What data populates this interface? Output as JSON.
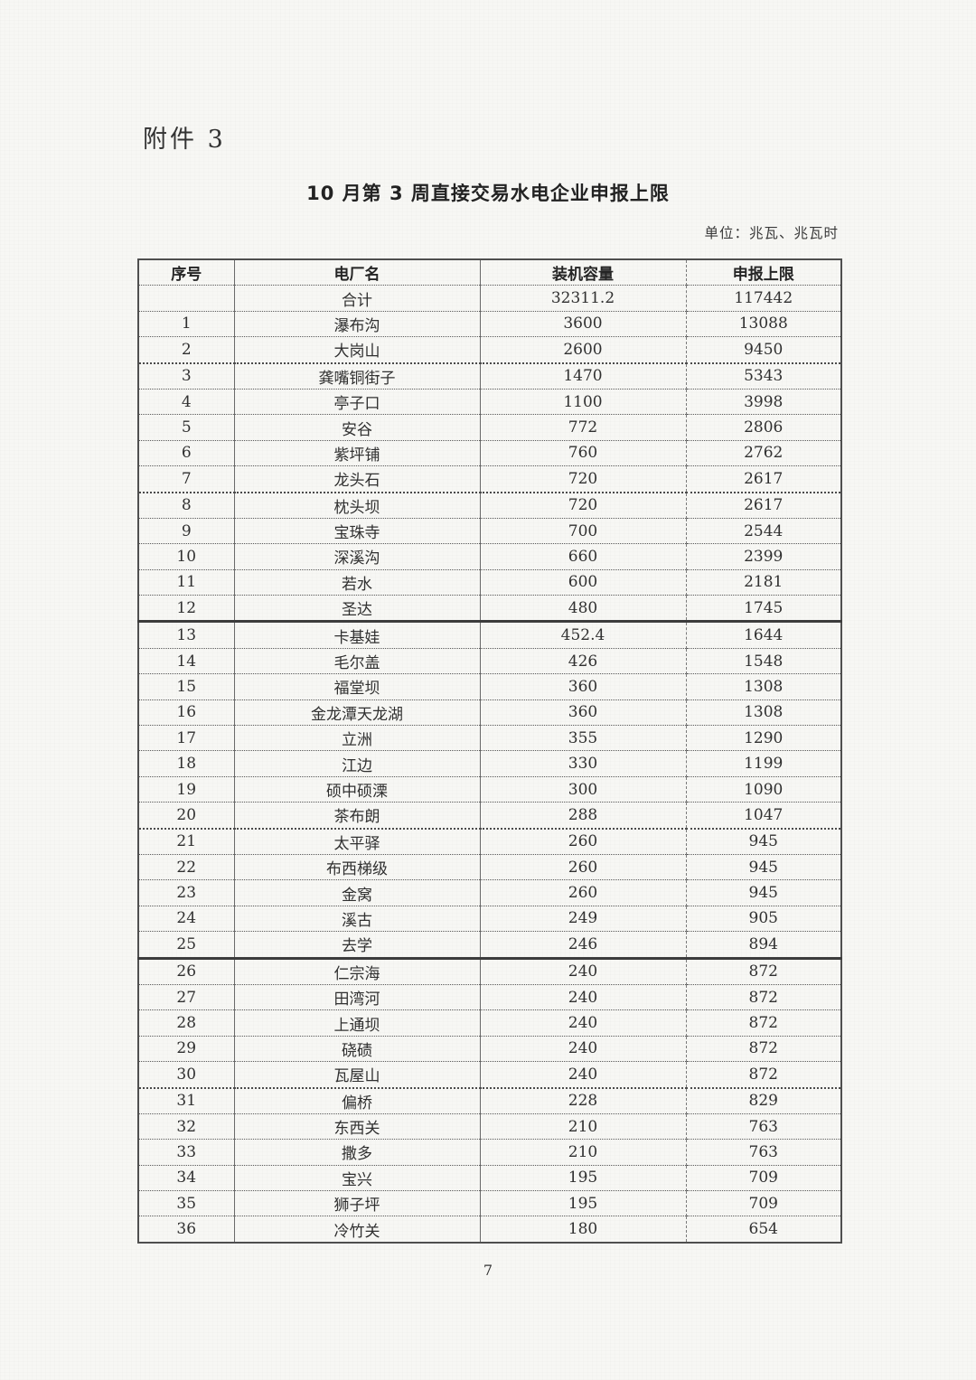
{
  "page": {
    "attachment_label": "附件 3",
    "title": "10 月第 3 周直接交易水电企业申报上限",
    "unit_note": "单位：兆瓦、兆瓦时",
    "page_number": "7"
  },
  "colors": {
    "paper": "#f7f7f4",
    "ink": "#2f2f2f",
    "border": "#4f4f4f"
  },
  "table": {
    "headers": [
      "序号",
      "电厂名",
      "装机容量",
      "申报上限"
    ],
    "total_row": {
      "no": "",
      "name": "合计",
      "capacity": "32311.2",
      "limit": "117442"
    },
    "rows": [
      {
        "no": "1",
        "name": "瀑布沟",
        "capacity": "3600",
        "limit": "13088"
      },
      {
        "no": "2",
        "name": "大岗山",
        "capacity": "2600",
        "limit": "9450"
      },
      {
        "no": "3",
        "name": "龚嘴铜街子",
        "capacity": "1470",
        "limit": "5343"
      },
      {
        "no": "4",
        "name": "亭子口",
        "capacity": "1100",
        "limit": "3998"
      },
      {
        "no": "5",
        "name": "安谷",
        "capacity": "772",
        "limit": "2806"
      },
      {
        "no": "6",
        "name": "紫坪铺",
        "capacity": "760",
        "limit": "2762"
      },
      {
        "no": "7",
        "name": "龙头石",
        "capacity": "720",
        "limit": "2617"
      },
      {
        "no": "8",
        "name": "枕头坝",
        "capacity": "720",
        "limit": "2617"
      },
      {
        "no": "9",
        "name": "宝珠寺",
        "capacity": "700",
        "limit": "2544"
      },
      {
        "no": "10",
        "name": "深溪沟",
        "capacity": "660",
        "limit": "2399"
      },
      {
        "no": "11",
        "name": "若水",
        "capacity": "600",
        "limit": "2181"
      },
      {
        "no": "12",
        "name": "圣达",
        "capacity": "480",
        "limit": "1745"
      },
      {
        "no": "13",
        "name": "卡基娃",
        "capacity": "452.4",
        "limit": "1644"
      },
      {
        "no": "14",
        "name": "毛尔盖",
        "capacity": "426",
        "limit": "1548"
      },
      {
        "no": "15",
        "name": "福堂坝",
        "capacity": "360",
        "limit": "1308"
      },
      {
        "no": "16",
        "name": "金龙潭天龙湖",
        "capacity": "360",
        "limit": "1308"
      },
      {
        "no": "17",
        "name": "立洲",
        "capacity": "355",
        "limit": "1290"
      },
      {
        "no": "18",
        "name": "江边",
        "capacity": "330",
        "limit": "1199"
      },
      {
        "no": "19",
        "name": "硕中硕溧",
        "capacity": "300",
        "limit": "1090"
      },
      {
        "no": "20",
        "name": "茶布朗",
        "capacity": "288",
        "limit": "1047"
      },
      {
        "no": "21",
        "name": "太平驿",
        "capacity": "260",
        "limit": "945"
      },
      {
        "no": "22",
        "name": "布西梯级",
        "capacity": "260",
        "limit": "945"
      },
      {
        "no": "23",
        "name": "金窝",
        "capacity": "260",
        "limit": "945"
      },
      {
        "no": "24",
        "name": "溪古",
        "capacity": "249",
        "limit": "905"
      },
      {
        "no": "25",
        "name": "去学",
        "capacity": "246",
        "limit": "894"
      },
      {
        "no": "26",
        "name": "仁宗海",
        "capacity": "240",
        "limit": "872"
      },
      {
        "no": "27",
        "name": "田湾河",
        "capacity": "240",
        "limit": "872"
      },
      {
        "no": "28",
        "name": "上通坝",
        "capacity": "240",
        "limit": "872"
      },
      {
        "no": "29",
        "name": "硗碛",
        "capacity": "240",
        "limit": "872"
      },
      {
        "no": "30",
        "name": "瓦屋山",
        "capacity": "240",
        "limit": "872"
      },
      {
        "no": "31",
        "name": "偏桥",
        "capacity": "228",
        "limit": "829"
      },
      {
        "no": "32",
        "name": "东西关",
        "capacity": "210",
        "limit": "763"
      },
      {
        "no": "33",
        "name": "撒多",
        "capacity": "210",
        "limit": "763"
      },
      {
        "no": "34",
        "name": "宝兴",
        "capacity": "195",
        "limit": "709"
      },
      {
        "no": "35",
        "name": "狮子坪",
        "capacity": "195",
        "limit": "709"
      },
      {
        "no": "36",
        "name": "冷竹关",
        "capacity": "180",
        "limit": "654"
      }
    ]
  }
}
